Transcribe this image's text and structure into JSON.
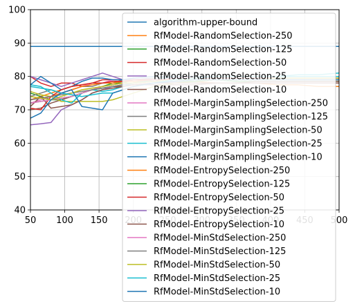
{
  "chart_data": {
    "type": "line",
    "title": "",
    "xlabel": "",
    "ylabel": "",
    "xlim": [
      50,
      500
    ],
    "ylim": [
      40,
      100
    ],
    "xticks": [
      50,
      100,
      150,
      200,
      250,
      300,
      350,
      400,
      450,
      500
    ],
    "yticks": [
      40,
      50,
      60,
      70,
      80,
      90,
      100
    ],
    "grid": true,
    "legend": {
      "placement": "upper-right, covering plot"
    },
    "x": [
      50,
      65,
      80,
      95,
      110,
      125,
      140,
      155,
      170,
      185,
      200,
      230,
      260,
      290,
      320,
      350,
      380,
      410,
      440,
      470,
      500
    ],
    "series": [
      {
        "name": "algorithm-upper-bound",
        "color": "#1f77b4",
        "values": [
          89,
          89,
          89,
          89,
          89,
          89,
          89,
          89,
          89,
          89,
          89,
          89,
          89,
          89,
          89,
          89,
          89,
          89,
          89,
          89,
          89
        ]
      },
      {
        "name": "RfModel-RandomSelection-250",
        "color": "#ff7f0e",
        "values": [
          73,
          74,
          75,
          76,
          77,
          77.5,
          78,
          78,
          78.5,
          78.5,
          78.5,
          78.5,
          78.5,
          78.5,
          78,
          78,
          78,
          77.5,
          77.5,
          77,
          77
        ]
      },
      {
        "name": "RfModel-RandomSelection-125",
        "color": "#2ca02c",
        "values": [
          75,
          74,
          73,
          73,
          74,
          75,
          76,
          77,
          78,
          78,
          79,
          79,
          79,
          79,
          79,
          78.5,
          78.5,
          78.5,
          78.5,
          78.5,
          78.5
        ]
      },
      {
        "name": "RfModel-RandomSelection-50",
        "color": "#d62728",
        "values": [
          80,
          78,
          77,
          78,
          78,
          77,
          78,
          79,
          79,
          79,
          79,
          79,
          79.5,
          79.5,
          79.5,
          79.5,
          79.5,
          79.5,
          79.5,
          79.5,
          79.5
        ]
      },
      {
        "name": "RfModel-RandomSelection-25",
        "color": "#9467bd",
        "values": [
          80,
          79,
          78,
          77,
          78,
          79,
          80,
          81,
          80,
          79,
          79,
          79,
          79,
          79,
          79,
          79,
          79,
          79,
          79,
          79,
          79
        ]
      },
      {
        "name": "RfModel-RandomSelection-10",
        "color": "#8c564b",
        "values": [
          70,
          70.5,
          72,
          73,
          74,
          75,
          76,
          76.5,
          77,
          77,
          77.5,
          77.5,
          77.5,
          77.5,
          78,
          78,
          78,
          78,
          78,
          78,
          78
        ]
      },
      {
        "name": "RfModel-MarginSamplingSelection-250",
        "color": "#e377c2",
        "values": [
          72,
          73,
          74,
          75,
          76,
          77,
          78,
          78,
          79,
          79,
          79,
          79.5,
          79.5,
          80,
          80,
          80,
          80,
          80,
          80,
          80,
          80
        ]
      },
      {
        "name": "RfModel-MarginSamplingSelection-125",
        "color": "#7f7f7f",
        "values": [
          74,
          75,
          76,
          75,
          76,
          77,
          77,
          78,
          78,
          79,
          79,
          79.5,
          80,
          80,
          80,
          80,
          80,
          80,
          80,
          80,
          80
        ]
      },
      {
        "name": "RfModel-MarginSamplingSelection-50",
        "color": "#bcbd22",
        "values": [
          75.5,
          74.5,
          74,
          72.5,
          72.5,
          72.5,
          72.5,
          72.5,
          73,
          74,
          75,
          77,
          78,
          78.5,
          79,
          79,
          79,
          79.5,
          79.5,
          79.5,
          79.5
        ]
      },
      {
        "name": "RfModel-MarginSamplingSelection-25",
        "color": "#17becf",
        "values": [
          77.5,
          77,
          75,
          73,
          72,
          75,
          76,
          75.5,
          76,
          77,
          78,
          79,
          80,
          80,
          80,
          80,
          80,
          80,
          80.5,
          80.5,
          81
        ]
      },
      {
        "name": "RfModel-MarginSamplingSelection-10",
        "color": "#1f77b4",
        "values": [
          77.5,
          80,
          78,
          76,
          77,
          78.5,
          79.5,
          79.5,
          79,
          79,
          79.5,
          80,
          80,
          80,
          80,
          80,
          80,
          80,
          80,
          80,
          80
        ]
      },
      {
        "name": "RfModel-EntropySelection-250",
        "color": "#ff7f0e",
        "values": [
          73,
          73.5,
          74,
          75,
          76,
          77,
          77.5,
          78,
          78,
          78.5,
          78.5,
          79,
          79,
          79,
          79,
          79,
          79,
          79,
          79,
          79,
          79
        ]
      },
      {
        "name": "RfModel-EntropySelection-125",
        "color": "#2ca02c",
        "values": [
          72,
          72.5,
          73,
          73.5,
          74,
          75,
          76,
          76.5,
          77,
          77.5,
          78,
          78.5,
          78.5,
          78.5,
          79,
          79,
          79,
          79,
          79,
          79,
          79
        ]
      },
      {
        "name": "RfModel-EntropySelection-50",
        "color": "#d62728",
        "values": [
          70.5,
          70,
          74,
          76,
          77,
          77.5,
          78,
          78,
          78.5,
          78.5,
          79,
          79,
          79,
          79,
          79,
          79,
          79,
          79,
          79,
          79,
          79
        ]
      },
      {
        "name": "RfModel-EntropySelection-25",
        "color": "#9467bd",
        "values": [
          65.5,
          65.8,
          66.2,
          70,
          71.5,
          73,
          75,
          76,
          77,
          77.5,
          78,
          78.5,
          79,
          79,
          79,
          79,
          79,
          79,
          79,
          79,
          79
        ]
      },
      {
        "name": "RfModel-EntropySelection-10",
        "color": "#8c564b",
        "values": [
          71,
          74,
          70.5,
          71,
          71.5,
          73,
          75,
          76,
          76.5,
          77,
          77.5,
          78,
          78,
          78,
          78,
          78,
          78.5,
          78.5,
          78.5,
          78.5,
          78.5
        ]
      },
      {
        "name": "RfModel-MinStdSelection-250",
        "color": "#e377c2",
        "values": [
          72,
          72.5,
          73,
          73.5,
          74,
          75,
          76,
          77,
          77.5,
          78,
          78,
          78.5,
          78.5,
          79,
          79,
          79,
          79,
          79,
          79,
          79,
          79
        ]
      },
      {
        "name": "RfModel-MinStdSelection-125",
        "color": "#7f7f7f",
        "values": [
          73,
          73.5,
          74,
          74.5,
          75,
          75.5,
          76,
          76.5,
          77,
          77.5,
          78,
          78.5,
          79,
          79,
          79,
          79,
          79,
          79,
          79,
          79,
          79
        ]
      },
      {
        "name": "RfModel-MinStdSelection-50",
        "color": "#bcbd22",
        "values": [
          74,
          73.5,
          73,
          74,
          75,
          76,
          76.5,
          77,
          77.5,
          78,
          78,
          78.5,
          79,
          79,
          79,
          79,
          79,
          79,
          79,
          79,
          79
        ]
      },
      {
        "name": "RfModel-MinStdSelection-25",
        "color": "#17becf",
        "values": [
          77,
          76.5,
          76,
          75,
          74.5,
          74,
          74.5,
          75,
          75,
          76,
          77,
          78,
          79,
          79.5,
          80,
          80,
          80,
          80,
          80,
          80,
          80
        ]
      },
      {
        "name": "RfModel-MinStdSelection-10",
        "color": "#1f77b4",
        "values": [
          67.5,
          69,
          73,
          75,
          76,
          71,
          70.5,
          70,
          75,
          76,
          77,
          78,
          78.5,
          79,
          79,
          79,
          79,
          79,
          79,
          79,
          79
        ]
      }
    ]
  }
}
